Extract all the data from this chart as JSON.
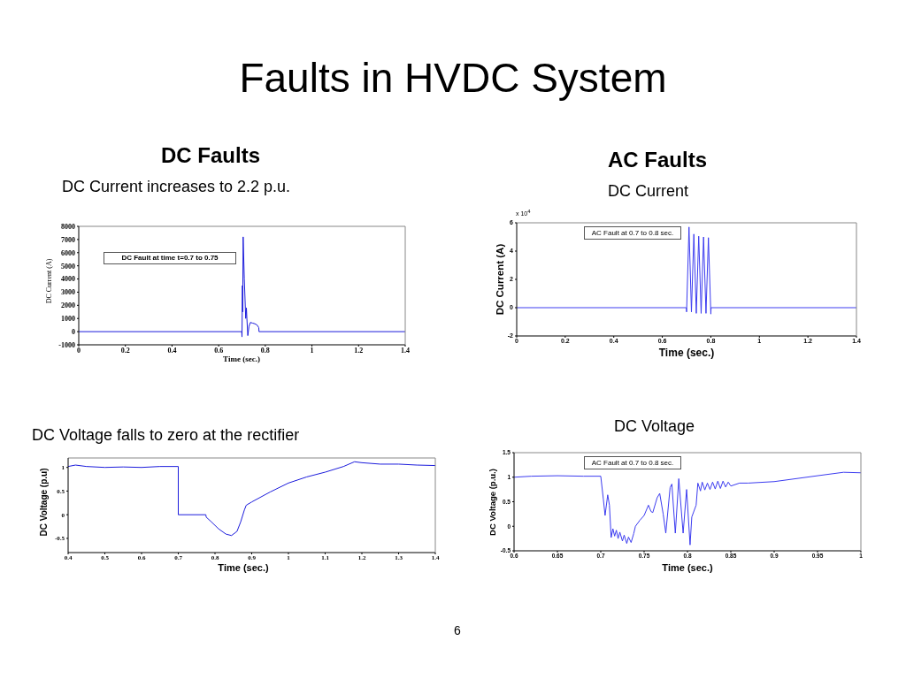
{
  "chart_data": [
    {
      "type": "other",
      "title": "Faults in HVDC System",
      "annotations": [
        "6"
      ]
    },
    {
      "type": "line",
      "title": "DC Faults",
      "subtitle": "DC Current increases to 2.2 p.u.",
      "xlabel": "Time (sec.)",
      "ylabel": "DC Current (A)",
      "annotations": [
        "DC Fault at time t=0.7 to 0.75"
      ],
      "x": [
        0,
        0.699,
        0.7,
        0.702,
        0.703,
        0.705,
        0.71,
        0.716,
        0.719,
        0.721,
        0.725,
        0.73,
        0.736,
        0.745,
        0.755,
        0.765,
        0.772,
        0.773,
        1.4
      ],
      "values": [
        0,
        0,
        -400,
        3500,
        1500,
        7200,
        4000,
        1000,
        1800,
        1000,
        -300,
        400,
        700,
        650,
        600,
        500,
        300,
        0,
        0
      ],
      "color": "#1c1cdc",
      "xlim": [
        0,
        1.4
      ],
      "xticks": [
        0,
        0.2,
        0.4,
        0.6,
        0.8,
        1,
        1.2,
        1.4
      ],
      "ylim": [
        -1000,
        8000
      ],
      "yticks": [
        -1000,
        0,
        1000,
        2000,
        3000,
        4000,
        5000,
        6000,
        7000,
        8000
      ]
    },
    {
      "type": "line",
      "title": "AC Faults",
      "subtitle": "DC Current",
      "xlabel": "Time (sec.)",
      "ylabel": "DC Current (A)",
      "annotations": [
        "AC Fault at 0.7 to 0.8 sec.",
        "x 10$^{4}$"
      ],
      "x": [
        0,
        0.699,
        0.7,
        0.71,
        0.72,
        0.73,
        0.74,
        0.75,
        0.76,
        0.77,
        0.78,
        0.79,
        0.8,
        0.801,
        1.4
      ],
      "values": [
        0,
        0,
        -0.3,
        5.7,
        -0.3,
        5.2,
        -0.4,
        5.05,
        -0.4,
        5.0,
        -0.4,
        4.95,
        -0.45,
        0,
        0
      ],
      "color": "#3c3cf0",
      "xlim": [
        0,
        1.4
      ],
      "xticks": [
        0,
        0.2,
        0.4,
        0.6,
        0.8,
        1,
        1.2,
        1.4
      ],
      "ylim": [
        -2,
        6
      ],
      "yticks": [
        -2,
        0,
        2,
        4,
        6
      ]
    },
    {
      "type": "line",
      "title": "DC Voltage falls to zero at the rectifier",
      "xlabel": "Time (sec.)",
      "ylabel": "DC Voltage (p.u)",
      "x": [
        0.4,
        0.42,
        0.45,
        0.5,
        0.55,
        0.6,
        0.65,
        0.7,
        0.7,
        0.775,
        0.776,
        0.79,
        0.81,
        0.83,
        0.845,
        0.86,
        0.87,
        0.88,
        0.885,
        0.9,
        0.95,
        1.0,
        1.05,
        1.1,
        1.15,
        1.18,
        1.2,
        1.25,
        1.3,
        1.35,
        1.4
      ],
      "values": [
        1.02,
        1.05,
        1.02,
        1.0,
        1.01,
        1.0,
        1.02,
        1.02,
        0,
        0,
        -0.05,
        -0.15,
        -0.3,
        -0.41,
        -0.44,
        -0.35,
        -0.15,
        0.1,
        0.2,
        0.27,
        0.48,
        0.67,
        0.8,
        0.9,
        1.02,
        1.12,
        1.1,
        1.07,
        1.07,
        1.05,
        1.04
      ],
      "color": "#1c1cdc",
      "xlim": [
        0.4,
        1.4
      ],
      "xticks": [
        0.4,
        0.5,
        0.6,
        0.7,
        0.8,
        0.9,
        1,
        1.1,
        1.2,
        1.3,
        1.4
      ],
      "ylim": [
        -0.8,
        1.2
      ],
      "yticks": [
        -0.5,
        0,
        0.5,
        1
      ]
    },
    {
      "type": "line",
      "title": "DC Voltage",
      "xlabel": "Time (sec.)",
      "ylabel": "DC Voltage (p.u.)",
      "annotations": [
        "AC Fault at 0.7 to 0.8 sec."
      ],
      "x": [
        0.6,
        0.62,
        0.65,
        0.68,
        0.7,
        0.703,
        0.705,
        0.708,
        0.71,
        0.712,
        0.714,
        0.716,
        0.718,
        0.72,
        0.722,
        0.725,
        0.727,
        0.73,
        0.732,
        0.735,
        0.738,
        0.74,
        0.745,
        0.75,
        0.755,
        0.758,
        0.76,
        0.765,
        0.768,
        0.772,
        0.775,
        0.78,
        0.782,
        0.786,
        0.79,
        0.795,
        0.799,
        0.803,
        0.805,
        0.81,
        0.812,
        0.815,
        0.817,
        0.82,
        0.823,
        0.826,
        0.829,
        0.832,
        0.835,
        0.838,
        0.841,
        0.844,
        0.847,
        0.85,
        0.86,
        0.87,
        0.9,
        0.95,
        0.98,
        1.0
      ],
      "values": [
        1.0,
        1.02,
        1.03,
        1.02,
        1.02,
        0.55,
        0.22,
        0.64,
        0.43,
        -0.23,
        -0.05,
        -0.2,
        -0.08,
        -0.25,
        -0.12,
        -0.3,
        -0.18,
        -0.35,
        -0.22,
        -0.33,
        -0.15,
        0,
        0.12,
        0.22,
        0.43,
        0.3,
        0.28,
        0.58,
        0.67,
        0.25,
        -0.14,
        0.79,
        0.86,
        -0.14,
        0.97,
        -0.14,
        0.75,
        -0.38,
        0.19,
        0.43,
        0.88,
        0.72,
        0.9,
        0.74,
        0.88,
        0.75,
        0.9,
        0.76,
        0.92,
        0.77,
        0.92,
        0.8,
        0.9,
        0.82,
        0.88,
        0.88,
        0.91,
        1.03,
        1.1,
        1.09
      ],
      "color": "#3c3cf0",
      "xlim": [
        0.6,
        1
      ],
      "xticks": [
        0.6,
        0.65,
        0.7,
        0.75,
        0.8,
        0.85,
        0.9,
        0.95,
        1
      ],
      "ylim": [
        -0.5,
        1.5
      ],
      "yticks": [
        -0.5,
        0,
        0.5,
        1,
        1.5
      ]
    }
  ]
}
